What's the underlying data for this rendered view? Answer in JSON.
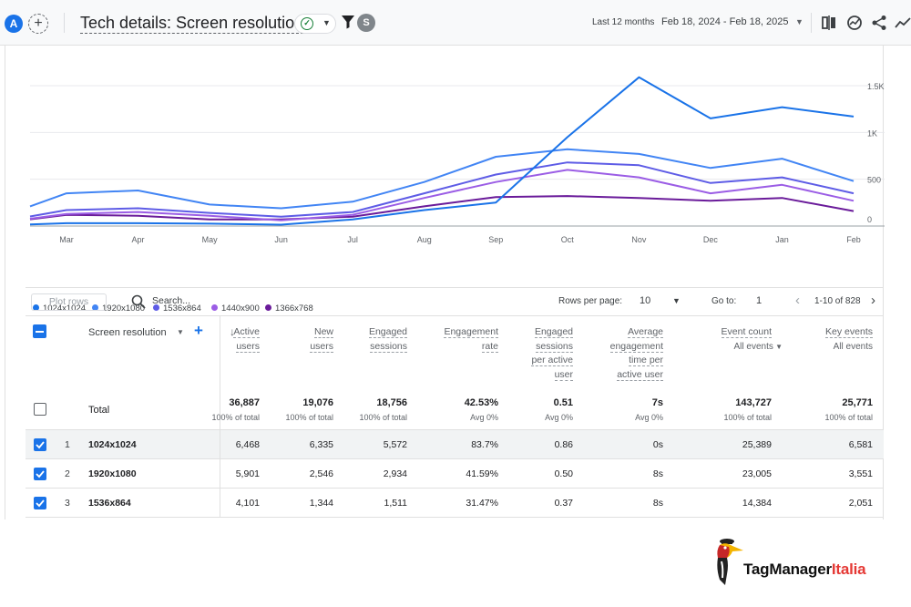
{
  "header": {
    "avatar_letter": "A",
    "add_comparison": "+",
    "title": "Tech details: Screen resolution",
    "segment_badge": "S",
    "date_range_label": "Last 12 months",
    "date_range_value": "Feb 18, 2024 - Feb 18, 2025",
    "icons": [
      "compare-icon",
      "insights-icon",
      "share-icon",
      "trend-icon"
    ]
  },
  "chart_data": {
    "type": "line",
    "x": [
      "Mar",
      "Apr",
      "May",
      "Jun",
      "Jul",
      "Aug",
      "Sep",
      "Oct",
      "Nov",
      "Dec",
      "Jan",
      "Feb"
    ],
    "y_ticks": [
      "1.5K",
      "1K",
      "500",
      "0"
    ],
    "ylim": [
      0,
      1500
    ],
    "grid": true,
    "legend_position": "bottom-left",
    "series": [
      {
        "name": "1024x1024",
        "color": "#1a73e8",
        "values": [
          30,
          30,
          25,
          15,
          70,
          170,
          250,
          950,
          1590,
          1150,
          1270,
          1170
        ]
      },
      {
        "name": "1920x1080",
        "color": "#4285f4",
        "values": [
          350,
          380,
          230,
          190,
          260,
          470,
          740,
          820,
          770,
          620,
          720,
          480
        ]
      },
      {
        "name": "1536x864",
        "color": "#5e5ce6",
        "values": [
          170,
          190,
          140,
          100,
          150,
          350,
          550,
          680,
          650,
          460,
          520,
          350
        ]
      },
      {
        "name": "1440x900",
        "color": "#9b5de5",
        "values": [
          130,
          150,
          110,
          60,
          120,
          300,
          470,
          600,
          520,
          350,
          440,
          270
        ]
      },
      {
        "name": "1366x768",
        "color": "#6a1b9a",
        "values": [
          120,
          110,
          70,
          70,
          100,
          210,
          310,
          320,
          300,
          270,
          300,
          160
        ]
      }
    ]
  },
  "toolbar": {
    "plot_rows": "Plot rows",
    "search_placeholder": "Search...",
    "rows_per_page_label": "Rows per page:",
    "rows_per_page_value": "10",
    "goto_label": "Go to:",
    "goto_value": "1",
    "page_info": "1-10 of 828"
  },
  "table": {
    "dimension_header": "Screen resolution",
    "columns": [
      {
        "key": "active_users",
        "lines": [
          "Active",
          "users"
        ]
      },
      {
        "key": "new_users",
        "lines": [
          "New",
          "users"
        ]
      },
      {
        "key": "engaged_sessions",
        "lines": [
          "Engaged",
          "sessions"
        ]
      },
      {
        "key": "engagement_rate",
        "lines": [
          "Engagement",
          "rate"
        ]
      },
      {
        "key": "engaged_sessions_per_user",
        "lines": [
          "Engaged",
          "sessions",
          "per active",
          "user"
        ]
      },
      {
        "key": "avg_engagement_time",
        "lines": [
          "Average",
          "engagement",
          "time per",
          "active user"
        ]
      },
      {
        "key": "event_count",
        "lines": [
          "Event count"
        ],
        "sub": "All events"
      },
      {
        "key": "key_events",
        "lines": [
          "Key events"
        ],
        "sub": "All events"
      }
    ],
    "total": {
      "label": "Total",
      "values": [
        "36,887",
        "19,076",
        "18,756",
        "42.53%",
        "0.51",
        "7s",
        "143,727",
        "25,771"
      ],
      "subs": [
        "100% of total",
        "100% of total",
        "100% of total",
        "Avg 0%",
        "Avg 0%",
        "Avg 0%",
        "100% of total",
        "100% of total"
      ]
    },
    "rows": [
      {
        "index": "1",
        "dimension": "1024x1024",
        "values": [
          "6,468",
          "6,335",
          "5,572",
          "83.7%",
          "0.86",
          "0s",
          "25,389",
          "6,581"
        ]
      },
      {
        "index": "2",
        "dimension": "1920x1080",
        "values": [
          "5,901",
          "2,546",
          "2,934",
          "41.59%",
          "0.50",
          "8s",
          "23,005",
          "3,551"
        ]
      },
      {
        "index": "3",
        "dimension": "1536x864",
        "values": [
          "4,101",
          "1,344",
          "1,511",
          "31.47%",
          "0.37",
          "8s",
          "14,384",
          "2,051"
        ]
      }
    ]
  },
  "watermark": {
    "text_main": "TagManager",
    "text_accent": "Italia"
  }
}
